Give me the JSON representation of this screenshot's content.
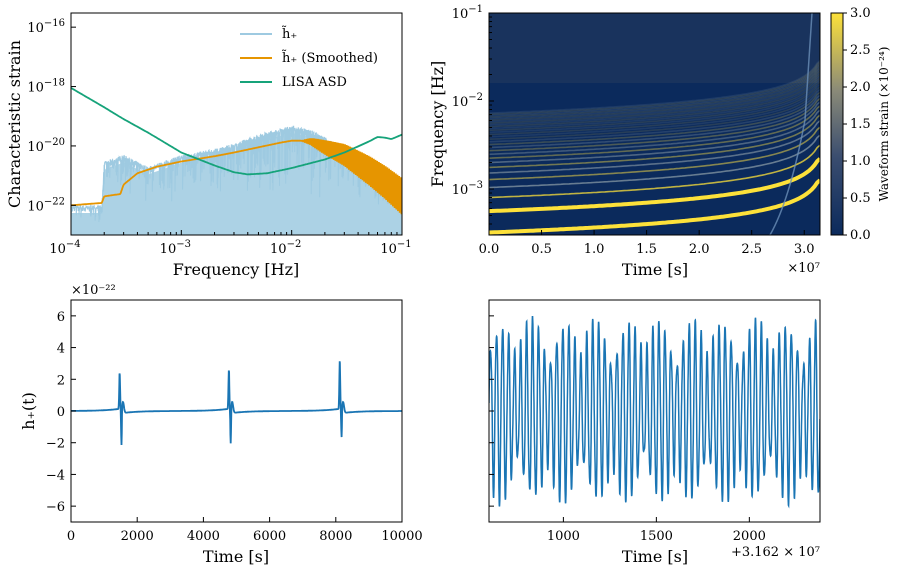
{
  "colors": {
    "strain_light": "#9ecae1",
    "strain_smooth": "#e69500",
    "lisa": "#16a37a",
    "waveform": "#1a75b4",
    "spec_bg": "#0b2a5c",
    "spec_hi": "#fde13a"
  },
  "chart_data": [
    {
      "id": "char_strain",
      "type": "line",
      "xscale": "log",
      "yscale": "log",
      "xlabel": "Frequency [Hz]",
      "ylabel": "Characteristic strain",
      "xlim": [
        0.0001,
        0.1
      ],
      "ylim": [
        1e-23,
        3e-16
      ],
      "xticks": [
        {
          "value": 0.0001,
          "base": "10",
          "exp": "−4"
        },
        {
          "value": 0.001,
          "base": "10",
          "exp": "−3"
        },
        {
          "value": 0.01,
          "base": "10",
          "exp": "−2"
        },
        {
          "value": 0.1,
          "base": "10",
          "exp": "−1"
        }
      ],
      "yticks": [
        {
          "value": 1e-22,
          "base": "10",
          "exp": "−22"
        },
        {
          "value": 1e-20,
          "base": "10",
          "exp": "−20"
        },
        {
          "value": 1e-18,
          "base": "10",
          "exp": "−18"
        },
        {
          "value": 1e-16,
          "base": "10",
          "exp": "−16"
        }
      ],
      "legend": {
        "position": "top-right",
        "entries": [
          {
            "label": "h̃₊",
            "series": "raw"
          },
          {
            "label": "h̃₊ (Smoothed)",
            "series": "smoothed"
          },
          {
            "label": "LISA ASD",
            "series": "lisa"
          }
        ]
      },
      "series": [
        {
          "name": "raw",
          "label": "h̃₊",
          "x": [
            0.0001,
            0.00019,
            0.0002,
            0.0003,
            0.0005,
            0.001,
            0.002,
            0.003,
            0.005,
            0.008,
            0.01,
            0.015,
            0.02,
            0.03,
            0.05,
            0.07,
            0.1
          ],
          "y_upper": [
            1e-22,
            1e-22,
            3e-21,
            5e-21,
            2e-21,
            5e-21,
            8e-21,
            1.2e-20,
            2.5e-20,
            4e-20,
            5e-20,
            3.5e-20,
            2e-20,
            8e-21,
            3e-21,
            1.3e-21,
            6e-22
          ],
          "y_lower": [
            1e-23,
            1e-23,
            2e-23,
            3e-23,
            2e-23,
            1e-23,
            1e-23,
            1e-23,
            1e-23,
            1e-23,
            1e-23,
            1e-23,
            1e-23,
            1e-23,
            1e-23,
            1e-23,
            1e-23
          ]
        },
        {
          "name": "smoothed",
          "label": "h̃₊ (Smoothed)",
          "x": [
            0.0001,
            0.00019,
            0.0002,
            0.00028,
            0.0003,
            0.0004,
            0.0006,
            0.001,
            0.002,
            0.003,
            0.005,
            0.008,
            0.01,
            0.012,
            0.015,
            0.02,
            0.03,
            0.05,
            0.07,
            0.1
          ],
          "y": [
            1e-22,
            1.2e-22,
            2e-22,
            2.4e-22,
            5e-22,
            1.2e-21,
            2e-21,
            3e-21,
            4.5e-21,
            6e-21,
            9e-21,
            1.3e-20,
            1.5e-20,
            1.5e-20,
            1.4e-20,
            9e-21,
            5e-21,
            1.5e-21,
            6e-22,
            2e-22
          ]
        },
        {
          "name": "lisa",
          "label": "LISA ASD",
          "x": [
            0.0001,
            0.0002,
            0.0003,
            0.0005,
            0.001,
            0.002,
            0.003,
            0.004,
            0.006,
            0.01,
            0.02,
            0.03,
            0.05,
            0.06,
            0.07,
            0.08,
            0.1
          ],
          "y": [
            9e-19,
            2e-19,
            8e-20,
            2.8e-20,
            6e-21,
            2.2e-21,
            1.3e-21,
            1.1e-21,
            1.2e-21,
            1.8e-21,
            3.5e-21,
            6e-21,
            1.4e-20,
            2e-20,
            1.9e-20,
            1.7e-20,
            2.4e-20
          ]
        }
      ]
    },
    {
      "id": "spectrogram",
      "type": "heatmap",
      "xlabel": "Time [s]",
      "ylabel": "Frequency [Hz]",
      "xlim": [
        0,
        31500000.0
      ],
      "x_offset_label": "×10⁷",
      "xticks": [
        {
          "value": 0.0,
          "label": "0.0"
        },
        {
          "value": 0.5,
          "label": "0.5"
        },
        {
          "value": 1.0,
          "label": "1.0"
        },
        {
          "value": 1.5,
          "label": "1.5"
        },
        {
          "value": 2.0,
          "label": "2.0"
        },
        {
          "value": 2.5,
          "label": "2.5"
        },
        {
          "value": 3.0,
          "label": "3.0"
        }
      ],
      "yscale": "log",
      "ylim": [
        0.0003,
        0.1
      ],
      "yticks": [
        {
          "value": 0.001,
          "base": "10",
          "exp": "−3"
        },
        {
          "value": 0.01,
          "base": "10",
          "exp": "−2"
        },
        {
          "value": 0.1,
          "base": "10",
          "exp": "−1"
        }
      ],
      "harmonics": {
        "count": 30,
        "f0_start": 0.00032,
        "f0_end": 0.0009,
        "chirp_time": 32000000.0
      },
      "colorbar": {
        "label": "Waveform strain (×10⁻²⁴)",
        "range": [
          0.0,
          3.0
        ],
        "ticks": [
          "0.0",
          "0.5",
          "1.0",
          "1.5",
          "2.0",
          "2.5",
          "3.0"
        ]
      }
    },
    {
      "id": "timeseries_early",
      "type": "line",
      "xlabel": "Time [s]",
      "ylabel": "h₊(t)",
      "y_scale_label": "×10⁻²²",
      "xlim": [
        0,
        10000
      ],
      "ylim": [
        -7,
        7
      ],
      "xticks": [
        "0",
        "2000",
        "4000",
        "6000",
        "8000",
        "10000"
      ],
      "yticks": [
        "−6",
        "−4",
        "−2",
        "0",
        "2",
        "4",
        "6"
      ],
      "bursts": [
        {
          "t": 1500,
          "peak": 2.3,
          "trough": -2.2
        },
        {
          "t": 4800,
          "peak": 2.5,
          "trough": -2.1
        },
        {
          "t": 8150,
          "peak": 3.1,
          "trough": -1.7
        }
      ]
    },
    {
      "id": "timeseries_late",
      "type": "line",
      "xlabel": "Time [s]",
      "xlim": [
        600,
        2380
      ],
      "x_offset_label": "+3.162 × 10⁷",
      "xticks": [
        "1000",
        "1500",
        "2000"
      ],
      "ylim": [
        -7,
        7
      ],
      "amplitude": 5.5,
      "cycles": 55
    }
  ]
}
